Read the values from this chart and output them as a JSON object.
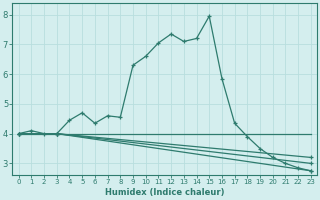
{
  "xlabel": "Humidex (Indice chaleur)",
  "bg_color": "#d4eeee",
  "line_color": "#2e7b6e",
  "grid_color": "#b8dede",
  "xlim": [
    -0.5,
    23.5
  ],
  "ylim": [
    2.6,
    8.4
  ],
  "yticks": [
    3,
    4,
    5,
    6,
    7,
    8
  ],
  "xticks": [
    0,
    1,
    2,
    3,
    4,
    5,
    6,
    7,
    8,
    9,
    10,
    11,
    12,
    13,
    14,
    15,
    16,
    17,
    18,
    19,
    20,
    21,
    22,
    23
  ],
  "series": [
    {
      "x": [
        0,
        1,
        2,
        3,
        4,
        5,
        6,
        7,
        8,
        9,
        10,
        11,
        12,
        13,
        14,
        15,
        16,
        17,
        18,
        19,
        20,
        21,
        22,
        23
      ],
      "y": [
        4.0,
        4.1,
        4.0,
        4.0,
        4.45,
        4.7,
        4.35,
        4.6,
        4.55,
        6.3,
        6.6,
        7.05,
        7.35,
        7.1,
        7.2,
        7.95,
        5.85,
        4.35,
        3.9,
        3.5,
        3.2,
        3.0,
        2.85,
        2.75
      ],
      "marker": true
    },
    {
      "x": [
        0,
        3,
        23
      ],
      "y": [
        4.0,
        4.0,
        4.0
      ],
      "marker": false
    },
    {
      "x": [
        0,
        3,
        23
      ],
      "y": [
        4.0,
        4.0,
        2.75
      ],
      "marker": true
    },
    {
      "x": [
        0,
        3,
        23
      ],
      "y": [
        4.0,
        4.0,
        3.0
      ],
      "marker": true
    },
    {
      "x": [
        0,
        3,
        23
      ],
      "y": [
        4.0,
        4.0,
        3.2
      ],
      "marker": true
    }
  ]
}
